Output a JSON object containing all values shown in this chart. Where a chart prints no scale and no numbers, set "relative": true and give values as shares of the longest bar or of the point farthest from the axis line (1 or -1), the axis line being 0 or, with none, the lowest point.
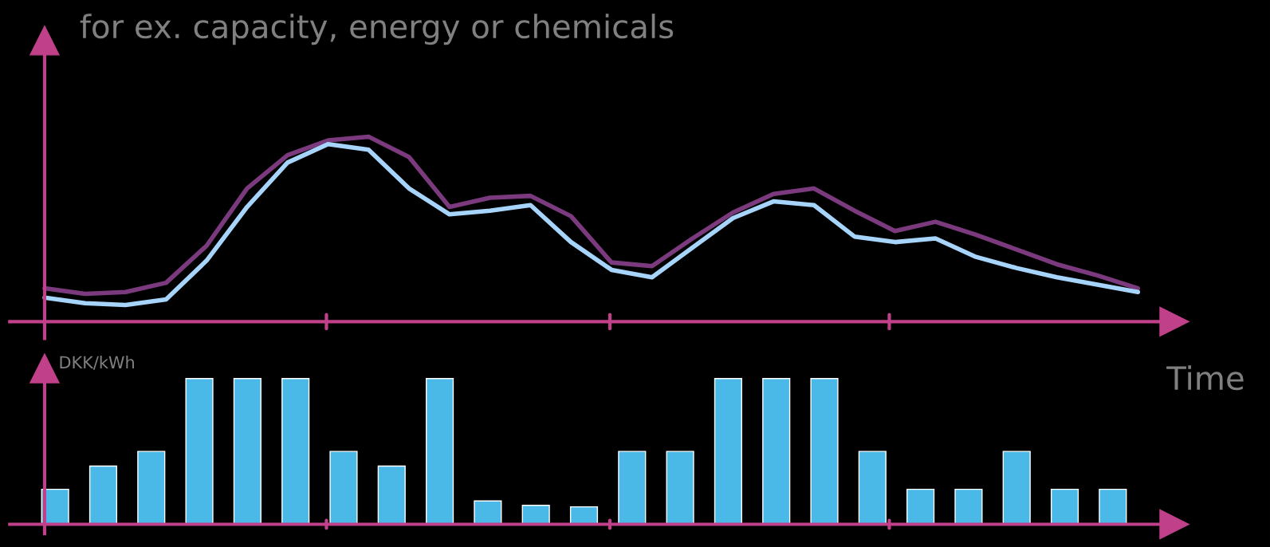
{
  "chart_data": [
    {
      "type": "line",
      "relative": true,
      "ylabel": "for ex. capacity, energy or chemicals",
      "grid": false,
      "legend": false,
      "marker": "none",
      "line_style": "solid",
      "categories": [
        null,
        null,
        null,
        null,
        null,
        null,
        null,
        null,
        null,
        null,
        null,
        null,
        null,
        null,
        null,
        null,
        null,
        null,
        null,
        null,
        null,
        null,
        null,
        null,
        null,
        null,
        null,
        null
      ],
      "series": [
        {
          "color": "#7b3a7e",
          "values": [
            0.18,
            0.15,
            0.16,
            0.21,
            0.41,
            0.72,
            0.9,
            0.98,
            1,
            0.89,
            0.62,
            0.67,
            0.68,
            0.57,
            0.32,
            0.3,
            0.45,
            0.59,
            0.69,
            0.72,
            0.6,
            0.49,
            0.54,
            0.47,
            0.39,
            0.31,
            0.25,
            0.18
          ]
        },
        {
          "color": "#a6d4fa",
          "values": [
            0.13,
            0.1,
            0.09,
            0.12,
            0.33,
            0.62,
            0.86,
            0.96,
            0.93,
            0.72,
            0.58,
            0.6,
            0.63,
            0.43,
            0.28,
            0.24,
            0.4,
            0.56,
            0.65,
            0.63,
            0.46,
            0.43,
            0.45,
            0.35,
            0.29,
            0.24,
            0.2,
            0.16
          ]
        }
      ]
    },
    {
      "type": "bar",
      "relative": true,
      "ylabel": "DKK/kWh",
      "xlabel": "Time",
      "grid": false,
      "categories": [
        null,
        null,
        null,
        null,
        null,
        null,
        null,
        null,
        null,
        null,
        null,
        null,
        null,
        null,
        null,
        null,
        null,
        null,
        null,
        null,
        null,
        null,
        null
      ],
      "color": "#4bb9e8",
      "values": [
        0.24,
        0.4,
        0.5,
        1,
        1,
        1,
        0.5,
        0.4,
        1,
        0.16,
        0.13,
        0.12,
        0.5,
        0.5,
        1,
        1,
        1,
        0.5,
        0.24,
        0.24,
        0.5,
        0.24,
        0.24
      ]
    }
  ]
}
